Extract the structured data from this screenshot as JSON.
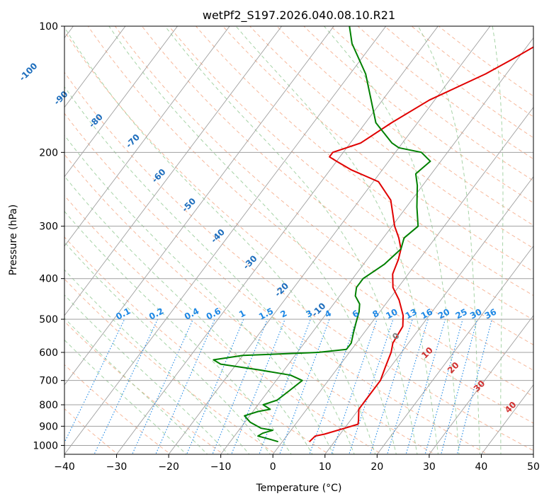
{
  "chart_data": {
    "type": "line",
    "title": "wetPf2_S197.2026.040.08.10.R21",
    "xlabel": "Temperature (°C)",
    "ylabel": "Pressure (hPa)",
    "xlim": [
      -40,
      50
    ],
    "ylim": [
      1050,
      100
    ],
    "y_scale": "log",
    "grid": true,
    "x_ticks": [
      "−40",
      "−30",
      "−20",
      "−10",
      "0",
      "10",
      "20",
      "30",
      "40",
      "50"
    ],
    "y_ticks": [
      "100",
      "200",
      "300",
      "400",
      "500",
      "600",
      "700",
      "800",
      "900",
      "1000"
    ],
    "colors": {
      "temperature": "#e00000",
      "dewpoint": "#008000",
      "isotherm": "#a0a0a0",
      "dry_adiabat": "#f4a07a",
      "moist_adiabat": "#90c890",
      "mixing_ratio": "#1e88e5",
      "dry_label": "#1e6ebd",
      "moist_label": "#d03030"
    },
    "series": [
      {
        "key": "temperature",
        "points": [
          [
            5.2,
            980
          ],
          [
            5.5,
            950
          ],
          [
            7.0,
            940
          ],
          [
            10.0,
            910
          ],
          [
            12.0,
            890
          ],
          [
            11.5,
            870
          ],
          [
            10.0,
            820
          ],
          [
            10.0,
            780
          ],
          [
            10.0,
            700
          ],
          [
            9.0,
            650
          ],
          [
            8.0,
            600
          ],
          [
            7.0,
            570
          ],
          [
            6.5,
            520
          ],
          [
            5.0,
            490
          ],
          [
            2.0,
            450
          ],
          [
            -1.0,
            420
          ],
          [
            -3.0,
            390
          ],
          [
            -4.0,
            360
          ],
          [
            -5.0,
            340
          ],
          [
            -7.0,
            320
          ],
          [
            -9.5,
            300
          ],
          [
            -14,
            260
          ],
          [
            -19,
            235
          ],
          [
            -26,
            220
          ],
          [
            -30,
            210
          ],
          [
            -32,
            205
          ],
          [
            -32,
            200
          ],
          [
            -28,
            190
          ],
          [
            -25,
            170
          ],
          [
            -21,
            150
          ],
          [
            -14,
            130
          ],
          [
            -11,
            120
          ],
          [
            -8,
            110
          ],
          [
            -5,
            100
          ]
        ]
      },
      {
        "key": "dewpoint",
        "points": [
          [
            -0.8,
            980
          ],
          [
            -3,
            965
          ],
          [
            -5.5,
            950
          ],
          [
            -5,
            935
          ],
          [
            -3.5,
            920
          ],
          [
            -6,
            910
          ],
          [
            -9,
            880
          ],
          [
            -11,
            850
          ],
          [
            -9,
            830
          ],
          [
            -7,
            820
          ],
          [
            -9,
            800
          ],
          [
            -7,
            780
          ],
          [
            -6,
            740
          ],
          [
            -5,
            700
          ],
          [
            -8,
            680
          ],
          [
            -15,
            660
          ],
          [
            -23,
            640
          ],
          [
            -25,
            625
          ],
          [
            -20,
            610
          ],
          [
            -6,
            600
          ],
          [
            -1,
            590
          ],
          [
            -1,
            570
          ],
          [
            -2,
            540
          ],
          [
            -3,
            510
          ],
          [
            -4,
            480
          ],
          [
            -5,
            460
          ],
          [
            -7,
            440
          ],
          [
            -8,
            420
          ],
          [
            -8,
            400
          ],
          [
            -6,
            370
          ],
          [
            -5,
            340
          ],
          [
            -6,
            320
          ],
          [
            -5,
            300
          ],
          [
            -8,
            270
          ],
          [
            -11,
            240
          ],
          [
            -13,
            225
          ],
          [
            -12,
            210
          ],
          [
            -15,
            200
          ],
          [
            -20,
            195
          ],
          [
            -22,
            190
          ],
          [
            -28,
            170
          ],
          [
            -37,
            130
          ],
          [
            -44,
            110
          ],
          [
            -47,
            100
          ]
        ]
      }
    ],
    "mixing_ratio_labels": [
      "0.1",
      "0.2",
      "0.4",
      "0.6",
      "1",
      "1.5",
      "2",
      "3",
      "4",
      "6",
      "8",
      "10",
      "13",
      "16",
      "20",
      "25",
      "30",
      "36"
    ],
    "dry_adiabat_labels": [
      "-100",
      "-90",
      "-80",
      "-70",
      "-60",
      "-50",
      "-40",
      "-30",
      "-20",
      "-10"
    ],
    "moist_adiabat_labels": [
      "0",
      "10",
      "20",
      "30",
      "40"
    ]
  }
}
